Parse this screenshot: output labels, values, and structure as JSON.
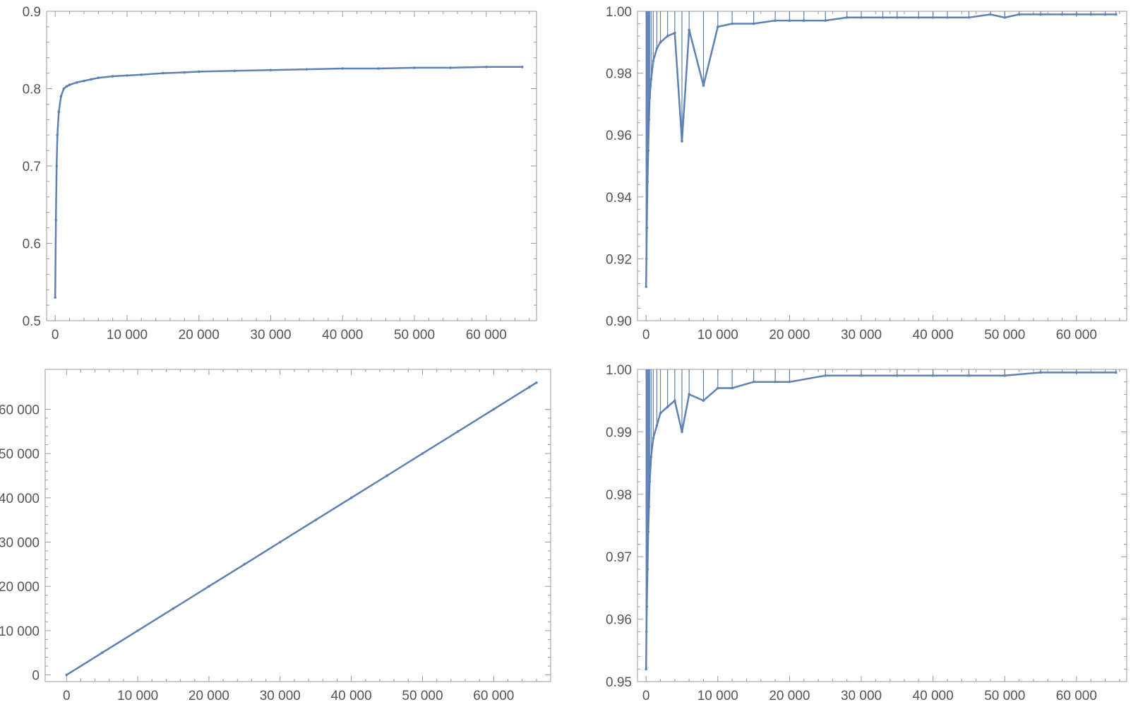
{
  "colors": {
    "series": "#5e81b5",
    "axis": "#9b9b9b",
    "tick_text": "#555555"
  },
  "chart_data": [
    {
      "type": "scatter",
      "position": "top-left",
      "title": "",
      "xlabel": "",
      "ylabel": "",
      "xlim": [
        -1200,
        67000
      ],
      "ylim": [
        0.5,
        0.9
      ],
      "x_ticks": [
        0,
        10000,
        20000,
        30000,
        40000,
        50000,
        60000
      ],
      "x_tick_labels": [
        "0",
        "10 000",
        "20 000",
        "30 000",
        "40 000",
        "50 000",
        "60 000"
      ],
      "y_ticks": [
        0.5,
        0.6,
        0.7,
        0.8,
        0.9
      ],
      "y_tick_labels": [
        "0.5",
        "0.6",
        "0.7",
        "0.8",
        "0.9"
      ],
      "series": [
        {
          "x": [
            0,
            100,
            200,
            300,
            500,
            800,
            1200,
            1600,
            2000,
            3000,
            4000,
            5000,
            6000,
            8000,
            10000,
            12000,
            15000,
            18000,
            20000,
            25000,
            30000,
            35000,
            40000,
            45000,
            50000,
            55000,
            60000,
            65000
          ],
          "y": [
            0.53,
            0.63,
            0.7,
            0.74,
            0.77,
            0.79,
            0.8,
            0.803,
            0.805,
            0.808,
            0.81,
            0.812,
            0.814,
            0.816,
            0.817,
            0.818,
            0.82,
            0.821,
            0.822,
            0.823,
            0.824,
            0.825,
            0.826,
            0.826,
            0.827,
            0.827,
            0.828,
            0.828
          ]
        }
      ]
    },
    {
      "type": "scatter",
      "position": "top-right",
      "title": "",
      "xlabel": "",
      "ylabel": "",
      "xlim": [
        -1200,
        67000
      ],
      "ylim": [
        0.9,
        1.0
      ],
      "x_ticks": [
        0,
        10000,
        20000,
        30000,
        40000,
        50000,
        60000
      ],
      "x_tick_labels": [
        "0",
        "10 000",
        "20 000",
        "30 000",
        "40 000",
        "50 000",
        "60 000"
      ],
      "y_ticks": [
        0.9,
        0.92,
        0.94,
        0.96,
        0.98,
        1.0
      ],
      "y_tick_labels": [
        "0.90",
        "0.92",
        "0.94",
        "0.96",
        "0.98",
        "1.00"
      ],
      "series": [
        {
          "x": [
            0,
            50,
            100,
            200,
            300,
            400,
            500,
            700,
            1000,
            1500,
            2000,
            3000,
            4000,
            5000,
            6000,
            8000,
            10000,
            12000,
            15000,
            18000,
            20000,
            22000,
            25000,
            28000,
            30000,
            33000,
            35000,
            38000,
            40000,
            42000,
            45000,
            48000,
            50000,
            52000,
            55000,
            58000,
            60000,
            62000,
            64000,
            65500
          ],
          "y": [
            0.911,
            0.92,
            0.93,
            0.945,
            0.955,
            0.965,
            0.972,
            0.978,
            0.984,
            0.988,
            0.99,
            0.992,
            0.993,
            0.958,
            0.994,
            0.976,
            0.995,
            0.996,
            0.996,
            0.997,
            0.997,
            0.997,
            0.997,
            0.998,
            0.998,
            0.998,
            0.998,
            0.998,
            0.998,
            0.998,
            0.998,
            0.999,
            0.998,
            0.999,
            0.999,
            0.999,
            0.999,
            0.999,
            0.999,
            0.999
          ]
        }
      ]
    },
    {
      "type": "scatter",
      "position": "bottom-left",
      "title": "",
      "xlabel": "",
      "ylabel": "",
      "xlim": [
        -3000,
        68000
      ],
      "ylim": [
        -1500,
        69000
      ],
      "x_ticks": [
        0,
        10000,
        20000,
        30000,
        40000,
        50000,
        60000
      ],
      "x_tick_labels": [
        "0",
        "10 000",
        "20 000",
        "30 000",
        "40 000",
        "50 000",
        "60 000"
      ],
      "y_ticks": [
        0,
        10000,
        20000,
        30000,
        40000,
        50000,
        60000
      ],
      "y_tick_labels": [
        "0",
        "10 000",
        "20 000",
        "30 000",
        "40 000",
        "50 000",
        "60 000"
      ],
      "series": [
        {
          "x": [
            0,
            5000,
            10000,
            15000,
            20000,
            25000,
            30000,
            35000,
            40000,
            45000,
            50000,
            55000,
            60000,
            65000,
            66000
          ],
          "y": [
            0,
            5000,
            10000,
            15000,
            20000,
            25000,
            30000,
            35000,
            40000,
            45000,
            50000,
            55000,
            60000,
            65000,
            66000
          ]
        }
      ]
    },
    {
      "type": "scatter",
      "position": "bottom-right",
      "title": "",
      "xlabel": "",
      "ylabel": "",
      "xlim": [
        -1200,
        67000
      ],
      "ylim": [
        0.95,
        1.0
      ],
      "x_ticks": [
        0,
        10000,
        20000,
        30000,
        40000,
        50000,
        60000
      ],
      "x_tick_labels": [
        "0",
        "10 000",
        "20 000",
        "30 000",
        "40 000",
        "50 000",
        "60 000"
      ],
      "y_ticks": [
        0.95,
        0.96,
        0.97,
        0.98,
        0.99,
        1.0
      ],
      "y_tick_labels": [
        "0.95",
        "0.96",
        "0.97",
        "0.98",
        "0.99",
        "1.00"
      ],
      "series": [
        {
          "x": [
            0,
            50,
            100,
            200,
            300,
            400,
            500,
            700,
            1000,
            1500,
            2000,
            3000,
            4000,
            5000,
            6000,
            8000,
            10000,
            12000,
            15000,
            18000,
            20000,
            25000,
            30000,
            35000,
            40000,
            45000,
            50000,
            55000,
            60000,
            65500
          ],
          "y": [
            0.952,
            0.958,
            0.962,
            0.968,
            0.974,
            0.978,
            0.982,
            0.986,
            0.989,
            0.991,
            0.993,
            0.994,
            0.995,
            0.99,
            0.996,
            0.995,
            0.997,
            0.997,
            0.998,
            0.998,
            0.998,
            0.999,
            0.999,
            0.999,
            0.999,
            0.999,
            0.999,
            0.9995,
            0.9995,
            0.9995
          ]
        }
      ]
    }
  ]
}
